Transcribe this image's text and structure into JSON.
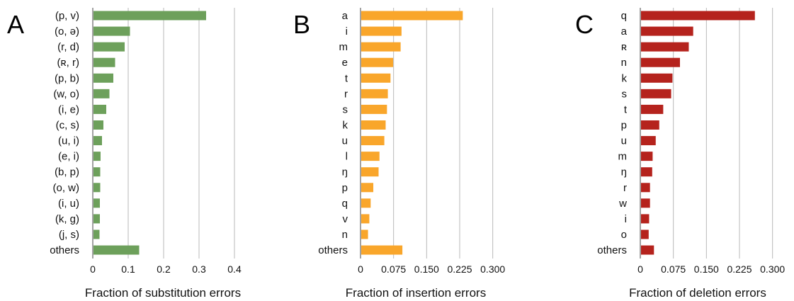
{
  "chart_data": [
    {
      "type": "bar",
      "orientation": "horizontal",
      "panel": "A",
      "xlabel": "Fraction of substitution errors",
      "ylabel": "",
      "xlim": [
        0,
        0.45
      ],
      "xticks": [
        0,
        0.1,
        0.2,
        0.3,
        0.4
      ],
      "xtick_labels": [
        "0",
        "0.1",
        "0.2",
        "0.3",
        "0.4"
      ],
      "grid": "vertical",
      "color": "#6da05b",
      "categories": [
        "(p, v)",
        "(o, ə)",
        "(r, d)",
        "(ʀ, r)",
        "(p, b)",
        "(w, o)",
        "(i, e)",
        "(c, s)",
        "(u, i)",
        "(e, i)",
        "(b, p)",
        "(o, w)",
        "(i, u)",
        "(k, g)",
        "(j, s)",
        "others"
      ],
      "values": [
        0.32,
        0.105,
        0.09,
        0.063,
        0.058,
        0.047,
        0.038,
        0.03,
        0.026,
        0.022,
        0.021,
        0.021,
        0.02,
        0.02,
        0.019,
        0.131
      ]
    },
    {
      "type": "bar",
      "orientation": "horizontal",
      "panel": "B",
      "xlabel": "Fraction of insertion errors",
      "ylabel": "",
      "xlim": [
        0,
        0.3375
      ],
      "xticks": [
        0,
        0.075,
        0.15,
        0.225,
        0.3
      ],
      "xtick_labels": [
        "0",
        "0.075",
        "0.150",
        "0.225",
        "0.300"
      ],
      "grid": "vertical",
      "color": "#f9a62b",
      "categories": [
        "a",
        "i",
        "m",
        "e",
        "t",
        "r",
        "s",
        "k",
        "u",
        "l",
        "ŋ",
        "p",
        "q",
        "v",
        "n",
        "others"
      ],
      "values": [
        0.232,
        0.093,
        0.091,
        0.074,
        0.068,
        0.062,
        0.06,
        0.057,
        0.054,
        0.043,
        0.041,
        0.029,
        0.023,
        0.02,
        0.017,
        0.095
      ]
    },
    {
      "type": "bar",
      "orientation": "horizontal",
      "panel": "C",
      "xlabel": "Fraction of deletion errors",
      "ylabel": "",
      "xlim": [
        0,
        0.3375
      ],
      "xticks": [
        0,
        0.075,
        0.15,
        0.225,
        0.3
      ],
      "xtick_labels": [
        "0",
        "0.075",
        "0.150",
        "0.225",
        "0.300"
      ],
      "grid": "vertical",
      "color": "#b5231d",
      "categories": [
        "q",
        "a",
        "ʀ",
        "n",
        "k",
        "s",
        "t",
        "p",
        "u",
        "m",
        "ŋ",
        "r",
        "w",
        "i",
        "o",
        "others"
      ],
      "values": [
        0.26,
        0.12,
        0.11,
        0.09,
        0.073,
        0.07,
        0.052,
        0.043,
        0.035,
        0.028,
        0.027,
        0.022,
        0.022,
        0.02,
        0.019,
        0.031
      ]
    }
  ]
}
